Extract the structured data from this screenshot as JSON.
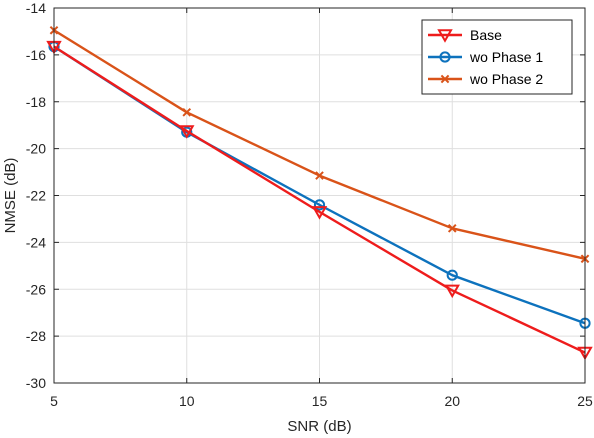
{
  "chart_data": {
    "type": "line",
    "xlabel": "SNR (dB)",
    "ylabel": "NMSE (dB)",
    "xlim": [
      5,
      25
    ],
    "ylim": [
      -30,
      -14
    ],
    "xticks": [
      "5",
      "10",
      "15",
      "20",
      "25"
    ],
    "yticks": [
      "-14",
      "-16",
      "-18",
      "-20",
      "-22",
      "-24",
      "-26",
      "-28",
      "-30"
    ],
    "grid": true,
    "legend_position": "top-right",
    "x": [
      5,
      10,
      15,
      20,
      25
    ],
    "series": [
      {
        "name": "Base",
        "color": "#ee1c1c",
        "marker": "triangle-down",
        "values": [
          -15.65,
          -19.25,
          -22.7,
          -26.05,
          -28.7
        ]
      },
      {
        "name": "wo Phase 1",
        "color": "#0d72bd",
        "marker": "circle",
        "values": [
          -15.65,
          -19.3,
          -22.4,
          -25.4,
          -27.45
        ]
      },
      {
        "name": "wo Phase 2",
        "color": "#d95319",
        "marker": "x",
        "values": [
          -14.95,
          -18.45,
          -21.15,
          -23.4,
          -24.7
        ]
      }
    ]
  }
}
